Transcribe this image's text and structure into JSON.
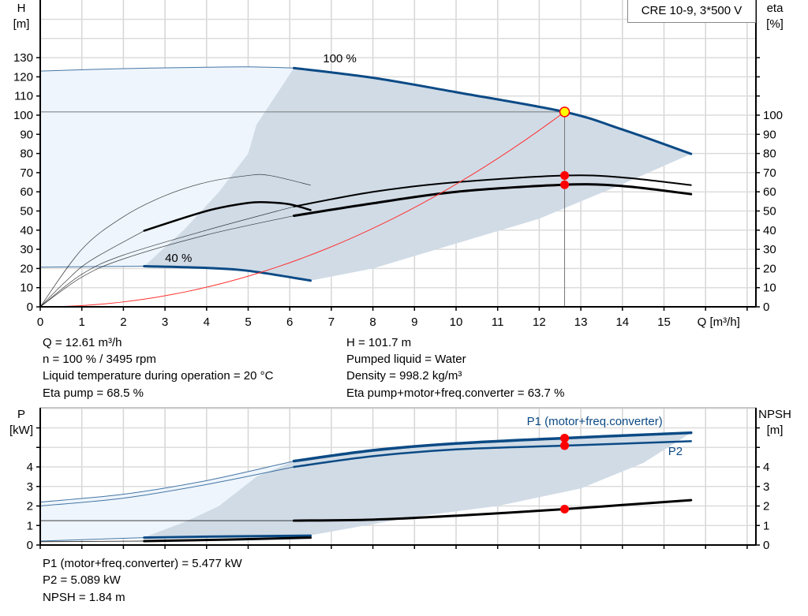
{
  "legend_box": "CRE 10-9, 3*500 V",
  "chart_data": [
    {
      "type": "line",
      "id": "head-efficiency",
      "ylabel": "H",
      "yunit": "[m]",
      "y2label": "eta",
      "y2unit": "[%]",
      "xlabel": "Q [m³/h]",
      "xlim": [
        0,
        17
      ],
      "ylim": [
        0,
        160
      ],
      "y2lim": [
        0,
        160
      ],
      "xticks": [
        0,
        1,
        2,
        3,
        4,
        5,
        6,
        7,
        8,
        9,
        10,
        11,
        12,
        13,
        14,
        15
      ],
      "yticks": [
        0,
        10,
        20,
        30,
        40,
        50,
        60,
        70,
        80,
        90,
        100,
        110,
        120,
        130
      ],
      "y2ticks": [
        0,
        10,
        20,
        30,
        40,
        50,
        60,
        70,
        80,
        90,
        100
      ],
      "grid": true,
      "colors": {
        "pump_curve": "#0b4a85",
        "efficiency": "#000000",
        "system_curve": "#ff3030",
        "range_dark": "#d0dbe6",
        "range_light": "#eef5fc",
        "marker": "#ff0000",
        "op_marker_fill": "#ffff00"
      },
      "areas": [
        {
          "name": "extended-range",
          "points": [
            [
              0,
              123
            ],
            [
              2,
              124.3
            ],
            [
              4,
              125
            ],
            [
              5,
              125.2
            ],
            [
              6.1,
              124.6
            ],
            [
              5.2,
              95
            ],
            [
              5.0,
              80
            ],
            [
              4.3,
              60
            ],
            [
              3.45,
              40
            ],
            [
              2.5,
              21.2
            ],
            [
              0,
              20.7
            ]
          ]
        },
        {
          "name": "operating-range",
          "points": [
            [
              6.1,
              124.6
            ],
            [
              8,
              119.5
            ],
            [
              10,
              112
            ],
            [
              12.61,
              101.7
            ],
            [
              14,
              92.5
            ],
            [
              15.65,
              79.8
            ],
            [
              14,
              64
            ],
            [
              13,
              55
            ],
            [
              12,
              46
            ],
            [
              10,
              33
            ],
            [
              8,
              20
            ],
            [
              6.5,
              13.7
            ],
            [
              5,
              18.8
            ],
            [
              4,
              20.3
            ],
            [
              2.5,
              21.2
            ],
            [
              3.45,
              40
            ],
            [
              4.3,
              60
            ],
            [
              5.0,
              80
            ],
            [
              5.2,
              95
            ]
          ]
        }
      ],
      "series": [
        {
          "label": "100 %",
          "role": "pump_curve",
          "width": 3,
          "points": [
            [
              6.1,
              124.6
            ],
            [
              8,
              119.5
            ],
            [
              10,
              112
            ],
            [
              12.61,
              101.7
            ],
            [
              14,
              92.5
            ],
            [
              15.65,
              79.8
            ]
          ]
        },
        {
          "role": "pump_curve",
          "width": 1,
          "points": [
            [
              0,
              123
            ],
            [
              2,
              124.3
            ],
            [
              4,
              125
            ],
            [
              5,
              125.2
            ],
            [
              6.1,
              124.6
            ]
          ]
        },
        {
          "label": "40 %",
          "role": "pump_curve",
          "width": 3,
          "points": [
            [
              2.5,
              21.2
            ],
            [
              4,
              20.3
            ],
            [
              5,
              18.8
            ],
            [
              6.5,
              13.7
            ]
          ]
        },
        {
          "role": "pump_curve",
          "width": 1,
          "points": [
            [
              0,
              20.7
            ],
            [
              2.5,
              21.2
            ]
          ]
        },
        {
          "role": "efficiency",
          "width": 2,
          "points": [
            [
              6.1,
              52.3
            ],
            [
              8,
              60
            ],
            [
              10,
              65
            ],
            [
              12.61,
              68.5
            ],
            [
              14,
              67.5
            ],
            [
              15.65,
              63.5
            ]
          ]
        },
        {
          "role": "efficiency",
          "width": 3,
          "points": [
            [
              6.1,
              47.5
            ],
            [
              8,
              54
            ],
            [
              10,
              60
            ],
            [
              12.61,
              63.7
            ],
            [
              14,
              63
            ],
            [
              15.65,
              58.8
            ]
          ]
        },
        {
          "role": "efficiency",
          "width": 2.5,
          "points": [
            [
              2.5,
              39.7
            ],
            [
              4,
              50
            ],
            [
              5,
              54.2
            ],
            [
              5.5,
              54.5
            ],
            [
              6,
              53.5
            ],
            [
              6.5,
              50.5
            ]
          ]
        },
        {
          "role": "efficiency",
          "width": 0.7,
          "points": [
            [
              0,
              0
            ],
            [
              1,
              30
            ],
            [
              2,
              47
            ],
            [
              3,
              58
            ],
            [
              4,
              65
            ],
            [
              5,
              68.5
            ],
            [
              5.5,
              68.6
            ],
            [
              6.5,
              63.5
            ]
          ]
        },
        {
          "role": "efficiency",
          "width": 0.7,
          "points": [
            [
              0,
              0
            ],
            [
              0.6,
              13
            ],
            [
              1.2,
              24
            ],
            [
              2.5,
              39.7
            ]
          ]
        },
        {
          "role": "efficiency",
          "width": 0.7,
          "points": [
            [
              0,
              0
            ],
            [
              1,
              17
            ],
            [
              2,
              27
            ],
            [
              4,
              40
            ],
            [
              6.1,
              52.3
            ]
          ]
        },
        {
          "role": "efficiency",
          "width": 0.7,
          "points": [
            [
              0,
              0
            ],
            [
              1,
              15.5
            ],
            [
              2,
              25
            ],
            [
              4,
              37.5
            ],
            [
              6.1,
              47.5
            ]
          ]
        },
        {
          "role": "system_curve",
          "width": 1,
          "quadratic_k": 0.6396,
          "xrange": [
            0,
            12.61
          ]
        }
      ],
      "operating_point": {
        "q": 12.61,
        "h": 101.7,
        "eta_pump": 68.5,
        "eta_total": 63.7
      }
    },
    {
      "type": "line",
      "id": "power-npsh",
      "ylabel": "P",
      "yunit": "[kW]",
      "y2label": "NPSH",
      "y2unit": "[m]",
      "xlim": [
        0,
        17
      ],
      "ylim": [
        0,
        7.03
      ],
      "yticks": [
        0,
        1,
        2,
        3,
        4
      ],
      "y2ticks": [
        0,
        1,
        2,
        3,
        4
      ],
      "ytick_marks": [
        0,
        1,
        2,
        3,
        4,
        5,
        6
      ],
      "grid": true,
      "colors": {
        "power": "#0b4a85",
        "npsh": "#000000",
        "range_dark": "#d0dbe6",
        "range_light": "#eef5fc",
        "marker": "#ff0000"
      },
      "areas": [
        {
          "name": "extended-range",
          "points": [
            [
              0,
              2.2
            ],
            [
              2,
              2.6
            ],
            [
              4,
              3.3
            ],
            [
              6.1,
              4.3
            ],
            [
              5.2,
              3.5
            ],
            [
              4.3,
              2.0
            ],
            [
              3.5,
              1.2
            ],
            [
              2.5,
              0.4
            ],
            [
              0,
              0.15
            ]
          ]
        },
        {
          "name": "operating-range",
          "points": [
            [
              6.1,
              4.3
            ],
            [
              8,
              4.85
            ],
            [
              10,
              5.2
            ],
            [
              12.61,
              5.477
            ],
            [
              15.65,
              5.75
            ],
            [
              14.5,
              4.2
            ],
            [
              13,
              2.9
            ],
            [
              11,
              2.0
            ],
            [
              9,
              1.45
            ],
            [
              6.5,
              0.5
            ],
            [
              4,
              0.42
            ],
            [
              2.5,
              0.4
            ],
            [
              3.5,
              1.2
            ],
            [
              4.3,
              2.0
            ],
            [
              5.2,
              3.5
            ]
          ]
        }
      ],
      "series": [
        {
          "label": "P1 (motor+freq.converter)",
          "role": "power",
          "width": 3.5,
          "points": [
            [
              6.1,
              4.3
            ],
            [
              8,
              4.85
            ],
            [
              10,
              5.2
            ],
            [
              12.61,
              5.477
            ],
            [
              15.65,
              5.75
            ]
          ]
        },
        {
          "label": "P2",
          "role": "power",
          "width": 2.5,
          "points": [
            [
              6.1,
              4.0
            ],
            [
              8,
              4.55
            ],
            [
              10,
              4.9
            ],
            [
              12.61,
              5.089
            ],
            [
              15.65,
              5.32
            ]
          ]
        },
        {
          "role": "power",
          "width": 1,
          "points": [
            [
              0,
              2.2
            ],
            [
              2,
              2.6
            ],
            [
              4,
              3.3
            ],
            [
              6.1,
              4.3
            ]
          ]
        },
        {
          "role": "power",
          "width": 1,
          "points": [
            [
              0,
              2.0
            ],
            [
              2,
              2.4
            ],
            [
              4,
              3.1
            ],
            [
              6.1,
              4.0
            ]
          ]
        },
        {
          "role": "power",
          "width": 3,
          "points": [
            [
              2.5,
              0.38
            ],
            [
              4.5,
              0.44
            ],
            [
              6.5,
              0.48
            ]
          ]
        },
        {
          "role": "power",
          "width": 1,
          "points": [
            [
              0,
              0.2
            ],
            [
              2.5,
              0.38
            ]
          ]
        },
        {
          "role": "npsh",
          "width": 3,
          "points": [
            [
              6.1,
              1.25
            ],
            [
              8,
              1.3
            ],
            [
              10,
              1.5
            ],
            [
              12.61,
              1.84
            ],
            [
              14,
              2.05
            ],
            [
              15.65,
              2.3
            ]
          ]
        },
        {
          "role": "npsh",
          "width": 1,
          "points": [
            [
              0,
              1.25
            ],
            [
              6.1,
              1.25
            ]
          ]
        },
        {
          "role": "npsh",
          "width": 3,
          "points": [
            [
              2.5,
              0.2
            ],
            [
              4.5,
              0.28
            ],
            [
              6.5,
              0.38
            ]
          ]
        },
        {
          "role": "npsh",
          "width": 1,
          "points": [
            [
              0,
              0.17
            ],
            [
              2.5,
              0.2
            ]
          ]
        }
      ],
      "operating_point": {
        "q": 12.61,
        "p1": 5.477,
        "p2": 5.089,
        "npsh": 1.84
      }
    }
  ],
  "readouts_top": {
    "q": "Q = 12.61 m³/h",
    "n": "n = 100 % / 3495 rpm",
    "temp": "Liquid temperature during operation = 20 °C",
    "eta_pump": "Eta pump = 68.5 %",
    "h": "H = 101.7 m",
    "liquid": "Pumped liquid = Water",
    "density": "Density = 998.2 kg/m³",
    "eta_total": "Eta pump+motor+freq.converter = 63.7 %"
  },
  "readouts_bottom": {
    "p1": "P1 (motor+freq.converter) = 5.477 kW",
    "p2": "P2 = 5.089 kW",
    "npsh": "NPSH = 1.84 m"
  }
}
